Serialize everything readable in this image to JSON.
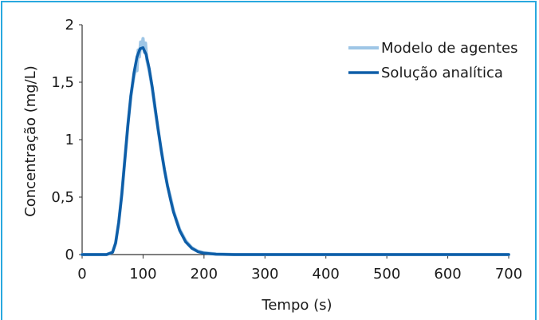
{
  "chart_data": {
    "type": "line",
    "title": "",
    "xlabel": "Tempo (s)",
    "ylabel": "Concentração (mg/L)",
    "xlim": [
      0,
      700
    ],
    "ylim": [
      0,
      2
    ],
    "x_ticks": [
      "0",
      "100",
      "200",
      "300",
      "400",
      "500",
      "600",
      "700"
    ],
    "y_ticks": [
      "0",
      "0,5",
      "1",
      "1,5",
      "2"
    ],
    "legend_position": "top-right",
    "grid": false,
    "series": [
      {
        "name": "Modelo de agentes",
        "color": "#9ec6e6",
        "x": [
          0,
          40,
          50,
          55,
          60,
          65,
          70,
          75,
          80,
          85,
          88,
          90,
          92,
          94,
          96,
          98,
          100,
          102,
          104,
          106,
          110,
          115,
          120,
          125,
          130,
          135,
          140,
          145,
          150,
          160,
          170,
          180,
          190,
          200,
          220,
          250,
          300,
          700
        ],
        "y": [
          0,
          0,
          0.02,
          0.1,
          0.28,
          0.52,
          0.82,
          1.12,
          1.38,
          1.55,
          1.62,
          1.6,
          1.78,
          1.72,
          1.85,
          1.8,
          1.88,
          1.76,
          1.84,
          1.7,
          1.6,
          1.45,
          1.25,
          1.08,
          0.9,
          0.74,
          0.6,
          0.5,
          0.38,
          0.22,
          0.12,
          0.06,
          0.03,
          0.015,
          0.005,
          0,
          0,
          0
        ]
      },
      {
        "name": "Solução analítica",
        "color": "#0e5ea8",
        "x": [
          0,
          40,
          50,
          55,
          60,
          65,
          70,
          75,
          80,
          85,
          90,
          95,
          100,
          105,
          110,
          115,
          120,
          125,
          130,
          135,
          140,
          145,
          150,
          160,
          170,
          180,
          190,
          200,
          220,
          250,
          300,
          700
        ],
        "y": [
          0,
          0,
          0.02,
          0.1,
          0.28,
          0.52,
          0.82,
          1.12,
          1.38,
          1.58,
          1.72,
          1.79,
          1.8,
          1.74,
          1.62,
          1.46,
          1.27,
          1.08,
          0.9,
          0.74,
          0.6,
          0.48,
          0.37,
          0.21,
          0.11,
          0.055,
          0.025,
          0.012,
          0.003,
          0,
          0,
          0
        ]
      }
    ]
  }
}
